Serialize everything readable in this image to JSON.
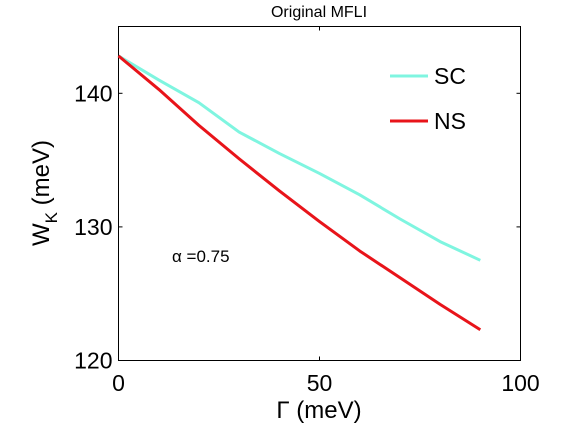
{
  "chart_data": {
    "type": "line",
    "title": "Original MFLI",
    "xlabel": "Γ (meV)",
    "ylabel": "W_K (meV)",
    "ylabel_main": "W",
    "ylabel_sub": "K",
    "ylabel_unit": " (meV)",
    "xlim": [
      0,
      100
    ],
    "ylim": [
      120,
      145
    ],
    "xticks": [
      0,
      50,
      100
    ],
    "yticks": [
      120,
      130,
      140
    ],
    "grid": false,
    "legend_position": "top-right",
    "annotation": "α =0.75",
    "series": [
      {
        "name": "SC",
        "color": "#7ff5e0",
        "x": [
          0,
          10,
          20,
          30,
          40,
          50,
          60,
          70,
          80,
          90
        ],
        "y": [
          142.8,
          141.0,
          139.3,
          137.1,
          135.5,
          134.0,
          132.4,
          130.6,
          128.9,
          127.5
        ]
      },
      {
        "name": "NS",
        "color": "#e8141a",
        "x": [
          0,
          10,
          20,
          30,
          40,
          50,
          60,
          70,
          80,
          90
        ],
        "y": [
          142.8,
          140.3,
          137.6,
          135.1,
          132.7,
          130.4,
          128.2,
          126.2,
          124.2,
          122.3
        ]
      }
    ]
  }
}
